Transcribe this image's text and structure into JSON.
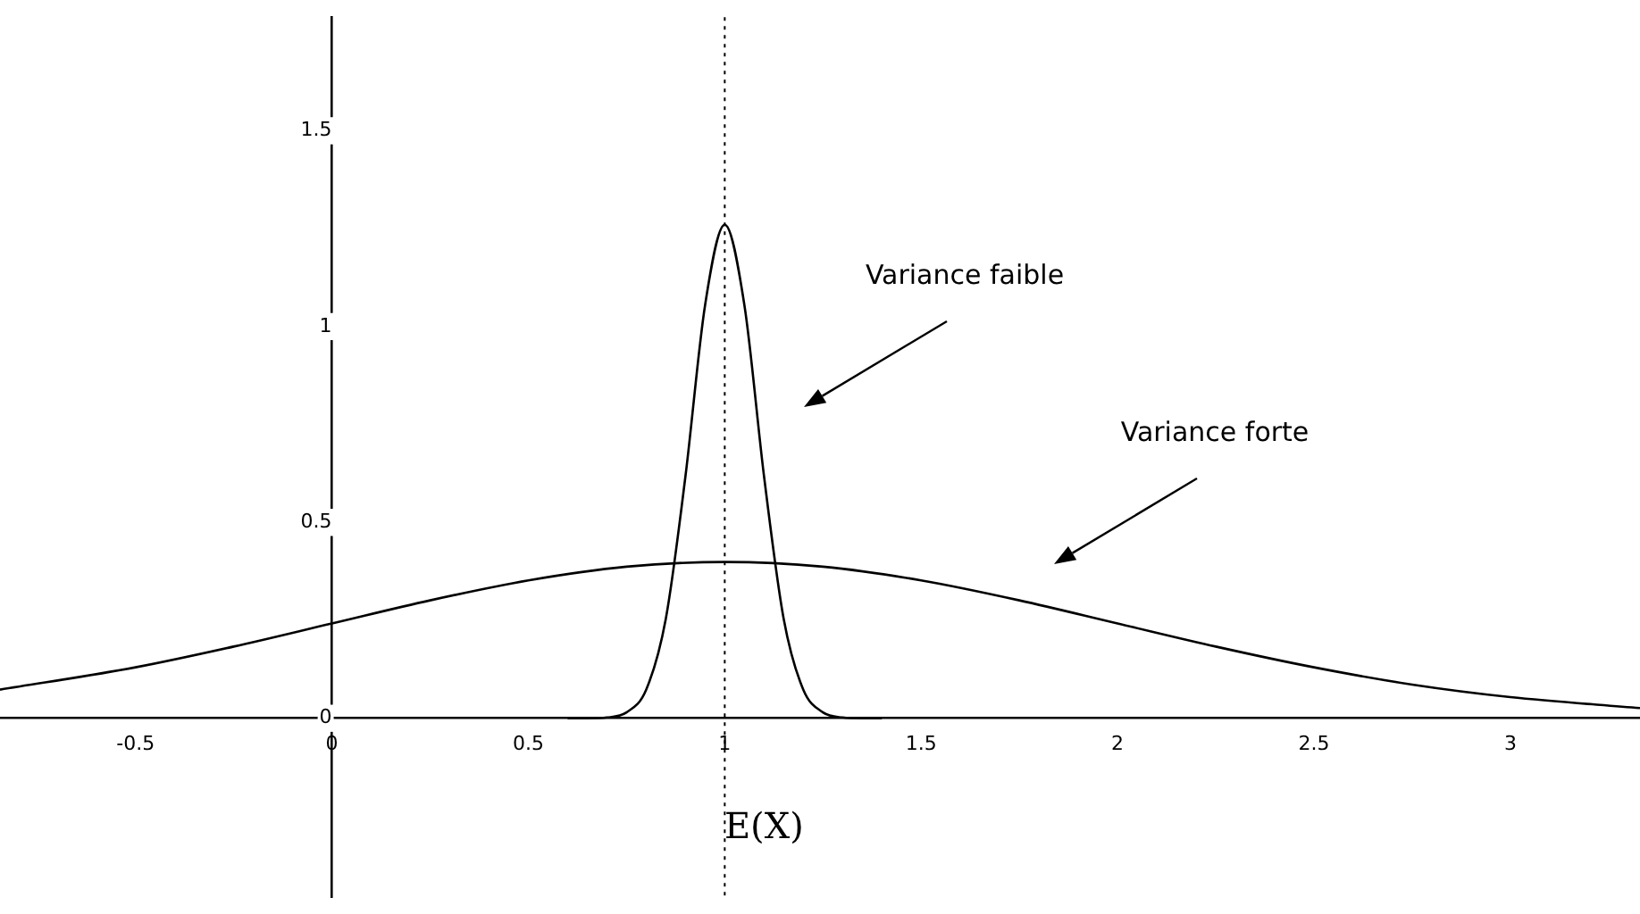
{
  "chart_data": {
    "type": "line",
    "xlim": [
      -0.845,
      3.33
    ],
    "ylim": [
      -0.456,
      1.79
    ],
    "xticks": [
      -0.5,
      0,
      0.5,
      1,
      1.5,
      2,
      2.5,
      3
    ],
    "yticks": [
      0,
      0.5,
      1,
      1.5
    ],
    "grid": false,
    "legend": false,
    "marker": "none",
    "line_style": "solid",
    "series": [
      {
        "color": "#000000",
        "x": [
          0.6,
          0.65,
          0.7,
          0.75,
          0.8,
          0.85,
          0.9,
          0.95,
          1,
          1.05,
          1.1,
          1.15,
          1.2,
          1.25,
          1.3,
          1.35,
          1.4
        ],
        "values": [
          0,
          0,
          0.002,
          0.015,
          0.073,
          0.254,
          0.618,
          1.055,
          1.26,
          1.055,
          0.618,
          0.254,
          0.073,
          0.015,
          0.002,
          0,
          0
        ]
      },
      {
        "color": "#000000",
        "x": [
          -0.845,
          -0.5,
          -0.25,
          0,
          0.25,
          0.5,
          0.75,
          1,
          1.25,
          1.5,
          1.75,
          2,
          2.25,
          2.5,
          2.75,
          3,
          3.33
        ],
        "values": [
          0.073,
          0.13,
          0.183,
          0.242,
          0.301,
          0.352,
          0.387,
          0.399,
          0.387,
          0.352,
          0.301,
          0.242,
          0.183,
          0.13,
          0.086,
          0.054,
          0.026
        ]
      }
    ],
    "ref_lines": [
      {
        "axis": "x",
        "value": 1,
        "label": "E(X)",
        "line_style": "dotted",
        "color": "#000000"
      }
    ],
    "annotations": [
      "Variance faible",
      "Variance forte"
    ]
  }
}
